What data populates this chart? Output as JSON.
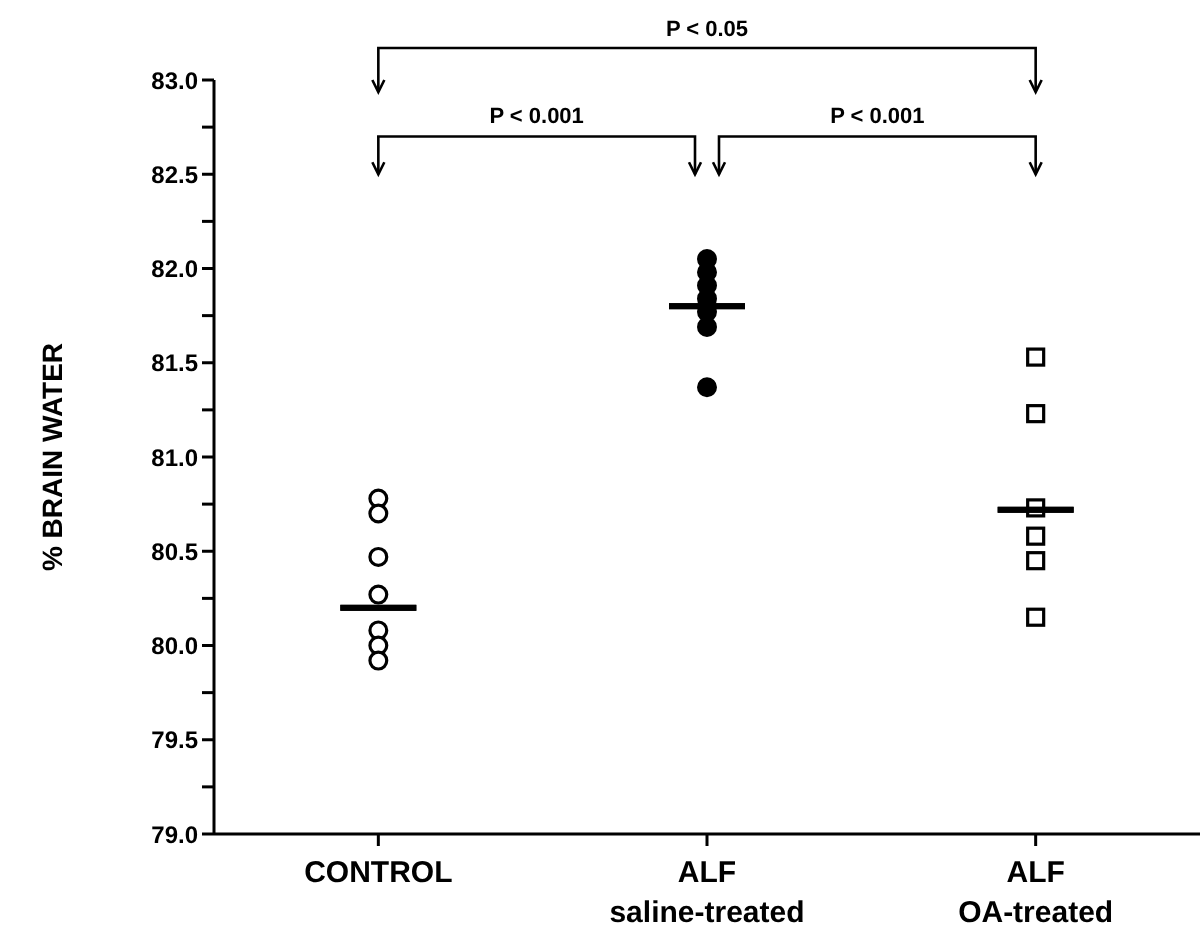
{
  "chart_data": {
    "type": "scatter",
    "ylabel": "% BRAIN WATER",
    "categories": [
      "CONTROL",
      "ALF\nsaline-treated",
      "ALF\nOA-treated"
    ],
    "ylim": [
      79,
      83
    ],
    "yticks": [
      {
        "value": 79,
        "label": "79.0"
      },
      {
        "value": 79.25,
        "label": null
      },
      {
        "value": 79.5,
        "label": "79.5"
      },
      {
        "value": 79.75,
        "label": null
      },
      {
        "value": 80,
        "label": "80.0"
      },
      {
        "value": 80.25,
        "label": null
      },
      {
        "value": 80.5,
        "label": "80.5"
      },
      {
        "value": 80.75,
        "label": null
      },
      {
        "value": 81,
        "label": "81.0"
      },
      {
        "value": 81.25,
        "label": null
      },
      {
        "value": 81.5,
        "label": "81.5"
      },
      {
        "value": 81.75,
        "label": null
      },
      {
        "value": 82,
        "label": "82.0"
      },
      {
        "value": 82.25,
        "label": null
      },
      {
        "value": 82.5,
        "label": "82.5"
      },
      {
        "value": 82.75,
        "label": null
      },
      {
        "value": 83,
        "label": "83.0"
      }
    ],
    "series": [
      {
        "color": "#000000",
        "marker": "circle",
        "x": [
          "CONTROL",
          "CONTROL",
          "CONTROL",
          "CONTROL",
          "CONTROL",
          "CONTROL",
          "CONTROL"
        ],
        "values": [
          80.78,
          80.7,
          80.47,
          80.27,
          80.08,
          80.0,
          79.92
        ]
      },
      {
        "color": "#000000",
        "marker": "circle",
        "x": [
          "ALF\nsaline-treated",
          "ALF\nsaline-treated",
          "ALF\nsaline-treated",
          "ALF\nsaline-treated",
          "ALF\nsaline-treated",
          "ALF\nsaline-treated",
          "ALF\nsaline-treated"
        ],
        "values": [
          82.05,
          81.98,
          81.91,
          81.84,
          81.77,
          81.69,
          81.37
        ]
      },
      {
        "color": "#000000",
        "marker": "square",
        "x": [
          "ALF\nOA-treated",
          "ALF\nOA-treated",
          "ALF\nOA-treated",
          "ALF\nOA-treated",
          "ALF\nOA-treated",
          "ALF\nOA-treated"
        ],
        "values": [
          81.53,
          81.23,
          80.73,
          80.58,
          80.45,
          80.15
        ]
      },
      {
        "type": "box",
        "color": "#000000",
        "boxes": [
          {
            "low": 80.2,
            "q1": 80.2,
            "median": 80.2,
            "q3": 80.2,
            "high": 80.2
          },
          {
            "low": 81.8,
            "q1": 81.8,
            "median": 81.8,
            "q3": 81.8,
            "high": 81.8
          },
          {
            "low": 80.72,
            "q1": 80.72,
            "median": 80.72,
            "q3": 80.72,
            "high": 80.72
          }
        ]
      }
    ],
    "annotations": [
      "P < 0.05",
      "P < 0.001",
      "P < 0.001"
    ]
  }
}
